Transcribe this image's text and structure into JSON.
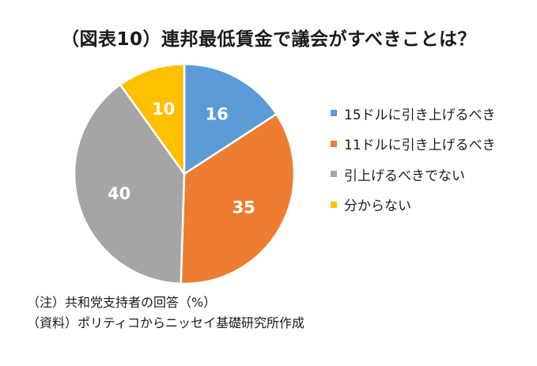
{
  "title": "（図表10）連邦最低賃金で議会がすべきことは？",
  "chart_data": {
    "type": "pie",
    "unit": "%",
    "slices": [
      {
        "label": "15ドルに引き上げるべき",
        "value": 16,
        "color": "#5B9BD5"
      },
      {
        "label": "11ドルに引き上げるべき",
        "value": 35,
        "color": "#ED7D31"
      },
      {
        "label": "引上げるべきでない",
        "value": 40,
        "color": "#A5A5A5"
      },
      {
        "label": "分からない",
        "value": 10,
        "color": "#FFC000"
      }
    ],
    "legend_position": "right"
  },
  "notes": {
    "note": "（注）共和党支持者の回答（%）",
    "source": "（資料）ポリティコからニッセイ基礎研究所作成"
  }
}
